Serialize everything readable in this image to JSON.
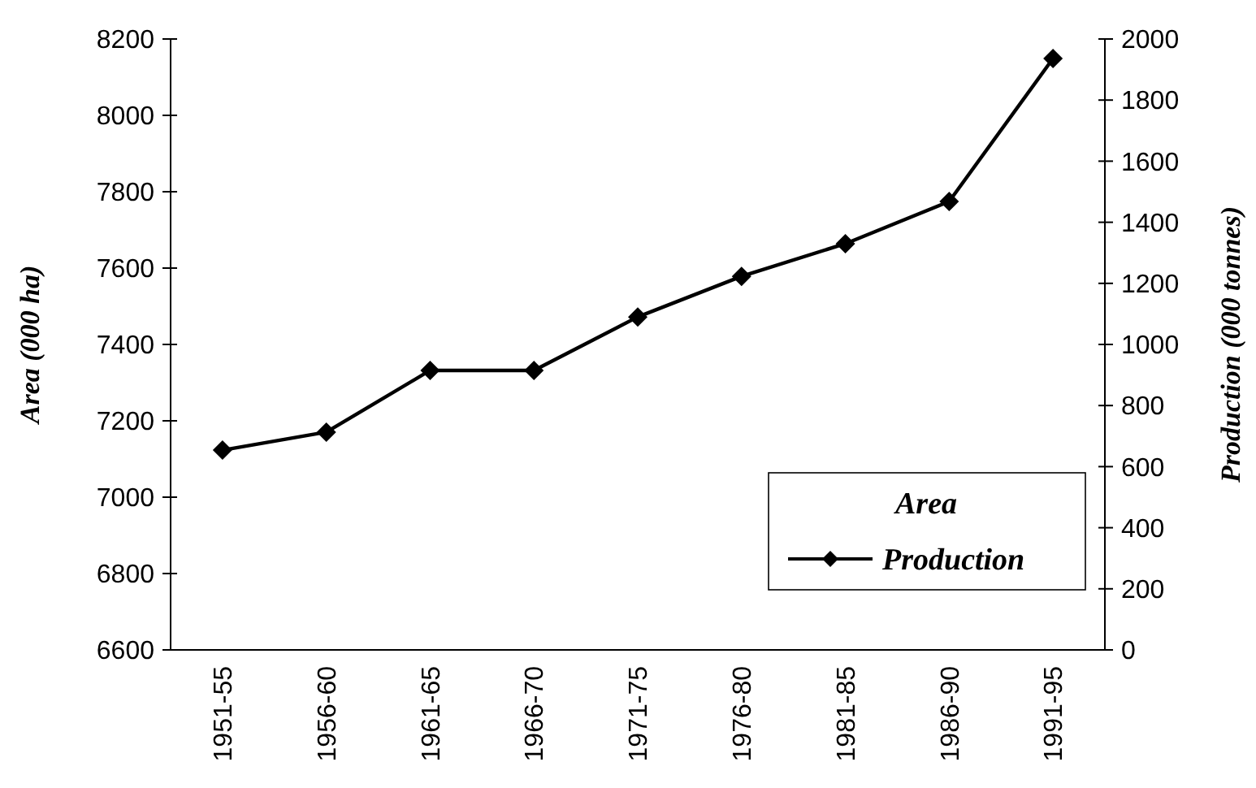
{
  "chart_data": {
    "type": "line",
    "ylabel": "Area (000 ha)",
    "y2label": "Production (000 tonnes)",
    "legend_title": "Area",
    "legend": "bottom right",
    "marker": "diamond",
    "line_style": "solid",
    "grid": false,
    "categories": [
      "1951-55",
      "1956-60",
      "1961-65",
      "1966-70",
      "1971-75",
      "1976-80",
      "1981-85",
      "1986-90",
      "1991-95"
    ],
    "ylim": [
      6600,
      8200
    ],
    "yticks": [
      6600,
      6800,
      7000,
      7200,
      7400,
      7600,
      7800,
      8000,
      8200
    ],
    "y2lim": [
      0,
      2000
    ],
    "y2ticks": [
      0,
      200,
      400,
      600,
      800,
      1000,
      1200,
      1400,
      1600,
      1800,
      2000
    ],
    "series": [
      {
        "name": "Production",
        "color": "#000000",
        "axis": "y2",
        "values": [
          654,
          713,
          915,
          915,
          1090,
          1223,
          1330,
          1468,
          1936
        ]
      }
    ]
  }
}
